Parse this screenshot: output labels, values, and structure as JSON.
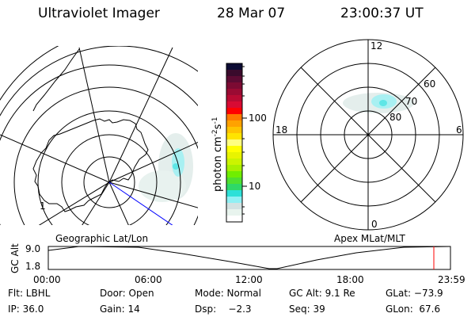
{
  "header": {
    "instrument": "Ultraviolet Imager",
    "date": "28 Mar 07",
    "time": "23:00:37 UT"
  },
  "geographic_map": {
    "label": "Geographic Lat/Lon",
    "marker": "1"
  },
  "magnetic_map": {
    "label": "Apex MLat/MLT",
    "mlt_labels": {
      "top": "12",
      "left": "18",
      "right": "6",
      "bottom": "0"
    },
    "lat_labels": [
      "60",
      "70",
      "80"
    ]
  },
  "colorbar": {
    "unit_label": "photon cm",
    "unit_sup1": "-2",
    "unit_mid": "s",
    "unit_sup2": "-1",
    "ticks": [
      "100",
      "10"
    ],
    "scale": "log",
    "colors": [
      "#0b0b33",
      "#3a0b2c",
      "#5c0b33",
      "#7c0b33",
      "#9a0b33",
      "#b80b33",
      "#d80b33",
      "#ff0000",
      "#ff7800",
      "#ffa200",
      "#ffc400",
      "#ffe400",
      "#ffff80",
      "#ffff00",
      "#e8f400",
      "#cbf400",
      "#a8f000",
      "#70ee00",
      "#4fe030",
      "#2fd868",
      "#2de0d8",
      "#90f0f4",
      "#d2e2e2",
      "#e8f4ee",
      "#ffffff"
    ]
  },
  "altitude_plot": {
    "ylabel": "GC Alt",
    "yticks": [
      "9.0",
      "1.8"
    ],
    "xticks": [
      "00:00",
      "06:00",
      "12:00",
      "18:00",
      "23:59"
    ],
    "current_time_marker_color": "#ff0000"
  },
  "info": {
    "row1": [
      "Flt: LBHL",
      "Door: Open",
      "Mode: Normal",
      "GC Alt: 9.1 Re",
      "GLat: −73.9"
    ],
    "row2": [
      "IP: 36.0",
      "Gain: 14",
      "Dsp:    −2.3",
      "Seq: 39",
      "GLon:  67.6"
    ]
  }
}
